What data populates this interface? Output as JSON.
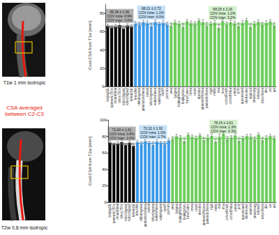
{
  "panels": {
    "top_image_label": "T1w 1 mm isotropic",
    "middle_label": "CSA averaged between C2-C3",
    "bottom_image_label": "T2w 0.8 mm isotropic"
  },
  "chart_data": [
    {
      "type": "bar",
      "y_label": "Cord CSA from T1w [mm²]",
      "categories": [
        "beijingGE",
        "juntendo750w",
        "mountSinai",
        "tokyo750w",
        "tokyoSigna1",
        "tokyoSigna2",
        "tehranGE",
        "brnoUhb",
        "chibaIngenia",
        "juntendoAchieva",
        "nottwil",
        "tokyoIngenia",
        "vuiisAchieva",
        "vuiisIngenia",
        "cardiff",
        "perform",
        "amu",
        "balgrist",
        "beijingPrisma",
        "beijingVerio",
        "brnoCeitec",
        "cmrra",
        "cmrrb",
        "dresden",
        "juntendoPrisma",
        "juntendoSkyra",
        "mgh",
        "milan",
        "mni",
        "nwu",
        "oxfordFmrib",
        "oxfordOhba",
        "pavia",
        "poly",
        "queensland",
        "sherbrooke",
        "stanford",
        "strasbourg",
        "tehranS",
        "tokyoSkyra",
        "ubc",
        "ucl",
        "unf"
      ],
      "ylim": [
        0,
        90
      ],
      "yticks": [
        0,
        20,
        40,
        60,
        80
      ],
      "grid": false,
      "series": [
        {
          "color": "#000000",
          "mean": 65.39,
          "sd": 1.96,
          "stats_label": "65.39 ± 1.96",
          "cov_intra": "COV intra: 0.9%",
          "cov_inter": "COV inter: 3.0%",
          "values": [
            66.1,
            64.2,
            65.3,
            67.0,
            63.4,
            66.5,
            65.2,
            null,
            null,
            null,
            null,
            null,
            null,
            null,
            null,
            null,
            null,
            null,
            null,
            null,
            null,
            null,
            null,
            null,
            null,
            null,
            null,
            null,
            null,
            null,
            null,
            null,
            null,
            null,
            null,
            null,
            null,
            null,
            null,
            null,
            null,
            null,
            null
          ],
          "errors": [
            2.1,
            1.8,
            2.5,
            3.0,
            1.6,
            2.2,
            2.4,
            null,
            null,
            null,
            null,
            null,
            null,
            null,
            null,
            null,
            null,
            null,
            null,
            null,
            null,
            null,
            null,
            null,
            null,
            null,
            null,
            null,
            null,
            null,
            null,
            null,
            null,
            null,
            null,
            null,
            null,
            null,
            null,
            null,
            null,
            null,
            null
          ]
        },
        {
          "color": "#3d9be9",
          "mean": 68.21,
          "sd": 2.72,
          "stats_label": "68.21 ± 2.72",
          "cov_intra": "COV intra: 1.1%",
          "cov_inter": "COV inter: 4.0%",
          "values": [
            null,
            null,
            null,
            null,
            null,
            null,
            null,
            68.4,
            67.1,
            70.2,
            69.0,
            65.8,
            70.5,
            68.2,
            69.3,
            67.4,
            null,
            null,
            null,
            null,
            null,
            null,
            null,
            null,
            null,
            null,
            null,
            null,
            null,
            null,
            null,
            null,
            null,
            null,
            null,
            null,
            null,
            null,
            null,
            null,
            null,
            null,
            null
          ],
          "errors": [
            null,
            null,
            null,
            null,
            null,
            null,
            null,
            2.6,
            3.1,
            2.0,
            2.8,
            3.4,
            2.2,
            1.9,
            3.0,
            2.5,
            null,
            null,
            null,
            null,
            null,
            null,
            null,
            null,
            null,
            null,
            null,
            null,
            null,
            null,
            null,
            null,
            null,
            null,
            null,
            null,
            null,
            null,
            null,
            null,
            null,
            null,
            null
          ]
        },
        {
          "color": "#6fce5e",
          "mean": 68.25,
          "sd": 2.16,
          "stats_label": "68.25 ± 2.16",
          "cov_intra": "COV intra: 1.2%",
          "cov_inter": "COV inter: 3.2%",
          "values": [
            null,
            null,
            null,
            null,
            null,
            null,
            null,
            null,
            null,
            null,
            null,
            null,
            null,
            null,
            null,
            null,
            66.2,
            70.1,
            68.4,
            65.3,
            71.2,
            69.0,
            67.5,
            72.1,
            70.3,
            66.4,
            68.2,
            69.5,
            64.1,
            71.4,
            67.3,
            70.2,
            68.6,
            66.1,
            69.3,
            72.4,
            65.2,
            68.1,
            70.5,
            67.2,
            69.4,
            71.1,
            66.5
          ],
          "errors": [
            null,
            null,
            null,
            null,
            null,
            null,
            null,
            null,
            null,
            null,
            null,
            null,
            null,
            null,
            null,
            null,
            3.0,
            2.4,
            2.8,
            3.5,
            2.1,
            2.6,
            3.2,
            2.0,
            2.9,
            3.6,
            2.5,
            2.7,
            3.8,
            2.2,
            3.1,
            2.4,
            2.8,
            3.3,
            2.6,
            2.1,
            3.4,
            2.9,
            2.3,
            3.0,
            2.7,
            2.2,
            3.1
          ]
        }
      ]
    },
    {
      "type": "bar",
      "y_label": "Cord CSA from T2w [mm²]",
      "categories": [
        "beijingGE",
        "juntendo750w",
        "mountSinai",
        "tokyo750w",
        "tokyoSigna1",
        "tokyoSigna2",
        "tehranGE",
        "brnoUhb",
        "chibaIngenia",
        "juntendoAchieva",
        "nottwil",
        "tokyoIngenia",
        "vuiisAchieva",
        "vuiisIngenia",
        "cardiff",
        "perform",
        "amu",
        "balgrist",
        "beijingPrisma",
        "beijingVerio",
        "brnoCeitec",
        "cmrra",
        "cmrrb",
        "dresden",
        "juntendoPrisma",
        "juntendoSkyra",
        "mgh",
        "milan",
        "mni",
        "nwu",
        "oxfordFmrib",
        "oxfordOhba",
        "pavia",
        "poly",
        "queensland",
        "sherbrooke",
        "stanford",
        "strasbourg",
        "tehranS",
        "tokyoSkyra",
        "ubc",
        "ucl",
        "unf"
      ],
      "ylim": [
        0,
        100
      ],
      "yticks": [
        0,
        20,
        40,
        60,
        80,
        100
      ],
      "grid": false,
      "series": [
        {
          "color": "#000000",
          "mean": 71.0,
          "sd": 1.41,
          "stats_label": "71.00 ± 1.41",
          "cov_intra": "COV intra: 0.8%",
          "cov_inter": "COV inter: 2.0%",
          "values": [
            72.4,
            70.1,
            71.2,
            73.0,
            69.5,
            72.3,
            68.5,
            null,
            null,
            null,
            null,
            null,
            null,
            null,
            null,
            null,
            null,
            null,
            null,
            null,
            null,
            null,
            null,
            null,
            null,
            null,
            null,
            null,
            null,
            null,
            null,
            null,
            null,
            null,
            null,
            null,
            null,
            null,
            null,
            null,
            null,
            null,
            null
          ],
          "errors": [
            2.1,
            1.8,
            2.5,
            3.0,
            1.6,
            2.2,
            2.4,
            null,
            null,
            null,
            null,
            null,
            null,
            null,
            null,
            null,
            null,
            null,
            null,
            null,
            null,
            null,
            null,
            null,
            null,
            null,
            null,
            null,
            null,
            null,
            null,
            null,
            null,
            null,
            null,
            null,
            null,
            null,
            null,
            null,
            null,
            null,
            null
          ]
        },
        {
          "color": "#3d9be9",
          "mean": 72.22,
          "sd": 1.92,
          "stats_label": "72.22 ± 1.92",
          "cov_intra": "COV intra: 1.0%",
          "cov_inter": "COV inter: 2.7%",
          "values": [
            null,
            null,
            null,
            null,
            null,
            null,
            null,
            72.8,
            70.4,
            74.1,
            71.3,
            69.9,
            73.5,
            72.0,
            70.6,
            75.2,
            null,
            null,
            null,
            null,
            null,
            null,
            null,
            null,
            null,
            null,
            null,
            null,
            null,
            null,
            null,
            null,
            null,
            null,
            null,
            null,
            null,
            null,
            null,
            null,
            null,
            null,
            null
          ],
          "errors": [
            null,
            null,
            null,
            null,
            null,
            null,
            null,
            2.6,
            3.1,
            2.0,
            2.8,
            3.4,
            2.2,
            1.9,
            3.0,
            2.5,
            null,
            null,
            null,
            null,
            null,
            null,
            null,
            null,
            null,
            null,
            null,
            null,
            null,
            null,
            null,
            null,
            null,
            null,
            null,
            null,
            null,
            null,
            null,
            null,
            null,
            null,
            null
          ]
        },
        {
          "color": "#6fce5e",
          "mean": 78.15,
          "sd": 2.61,
          "stats_label": "78.15 ± 2.61",
          "cov_intra": "COV intra: 1.3%",
          "cov_inter": "COV inter: 3.3%",
          "values": [
            null,
            null,
            null,
            null,
            null,
            null,
            null,
            null,
            null,
            null,
            null,
            null,
            null,
            null,
            null,
            null,
            76.2,
            80.1,
            78.4,
            74.3,
            82.0,
            79.2,
            77.1,
            81.3,
            75.4,
            78.2,
            80.5,
            73.6,
            79.1,
            83.2,
            76.4,
            78.3,
            81.1,
            74.5,
            77.2,
            80.3,
            79.4,
            76.1,
            82.2,
            75.3,
            78.1,
            80.2,
            77.4
          ],
          "errors": [
            null,
            null,
            null,
            null,
            null,
            null,
            null,
            null,
            null,
            null,
            null,
            null,
            null,
            null,
            null,
            null,
            3.0,
            2.4,
            2.8,
            3.5,
            2.1,
            2.6,
            3.2,
            2.0,
            2.9,
            3.6,
            2.5,
            2.7,
            3.8,
            2.2,
            3.1,
            2.4,
            2.8,
            3.3,
            2.6,
            2.1,
            3.4,
            2.9,
            2.3,
            3.0,
            2.7,
            2.2,
            3.1
          ]
        }
      ]
    }
  ]
}
